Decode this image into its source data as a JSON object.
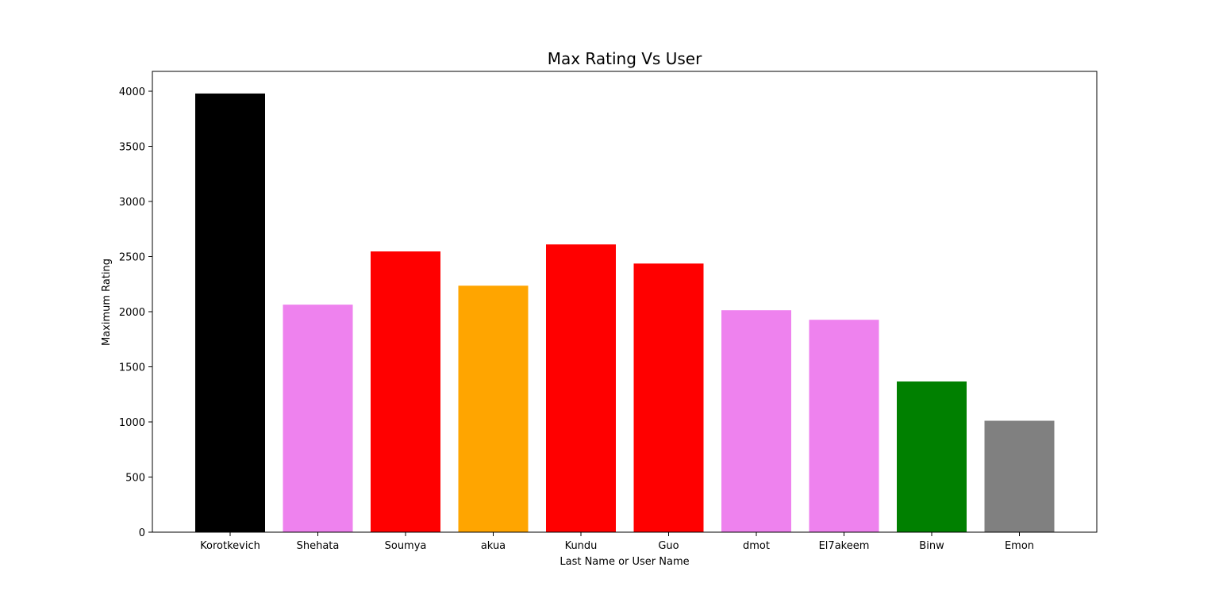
{
  "chart_data": {
    "type": "bar",
    "title": "Max Rating Vs User",
    "xlabel": "Last Name or User Name",
    "ylabel": "Maximum Rating",
    "ylim": [
      0,
      4180
    ],
    "yticks": [
      0,
      500,
      1000,
      1500,
      2000,
      2500,
      3000,
      3500,
      4000
    ],
    "grid": false,
    "categories": [
      "Korotkevich",
      "Shehata",
      "Soumya",
      "akua",
      "Kundu",
      "Guo",
      "dmot",
      "El7akeem",
      "Binw",
      "Emon"
    ],
    "values": [
      3979,
      2064,
      2547,
      2236,
      2610,
      2437,
      2013,
      1927,
      1367,
      1011
    ],
    "colors": [
      "#000000",
      "#ee82ee",
      "#ff0000",
      "#ffa500",
      "#ff0000",
      "#ff0000",
      "#ee82ee",
      "#ee82ee",
      "#008000",
      "#808080"
    ]
  }
}
